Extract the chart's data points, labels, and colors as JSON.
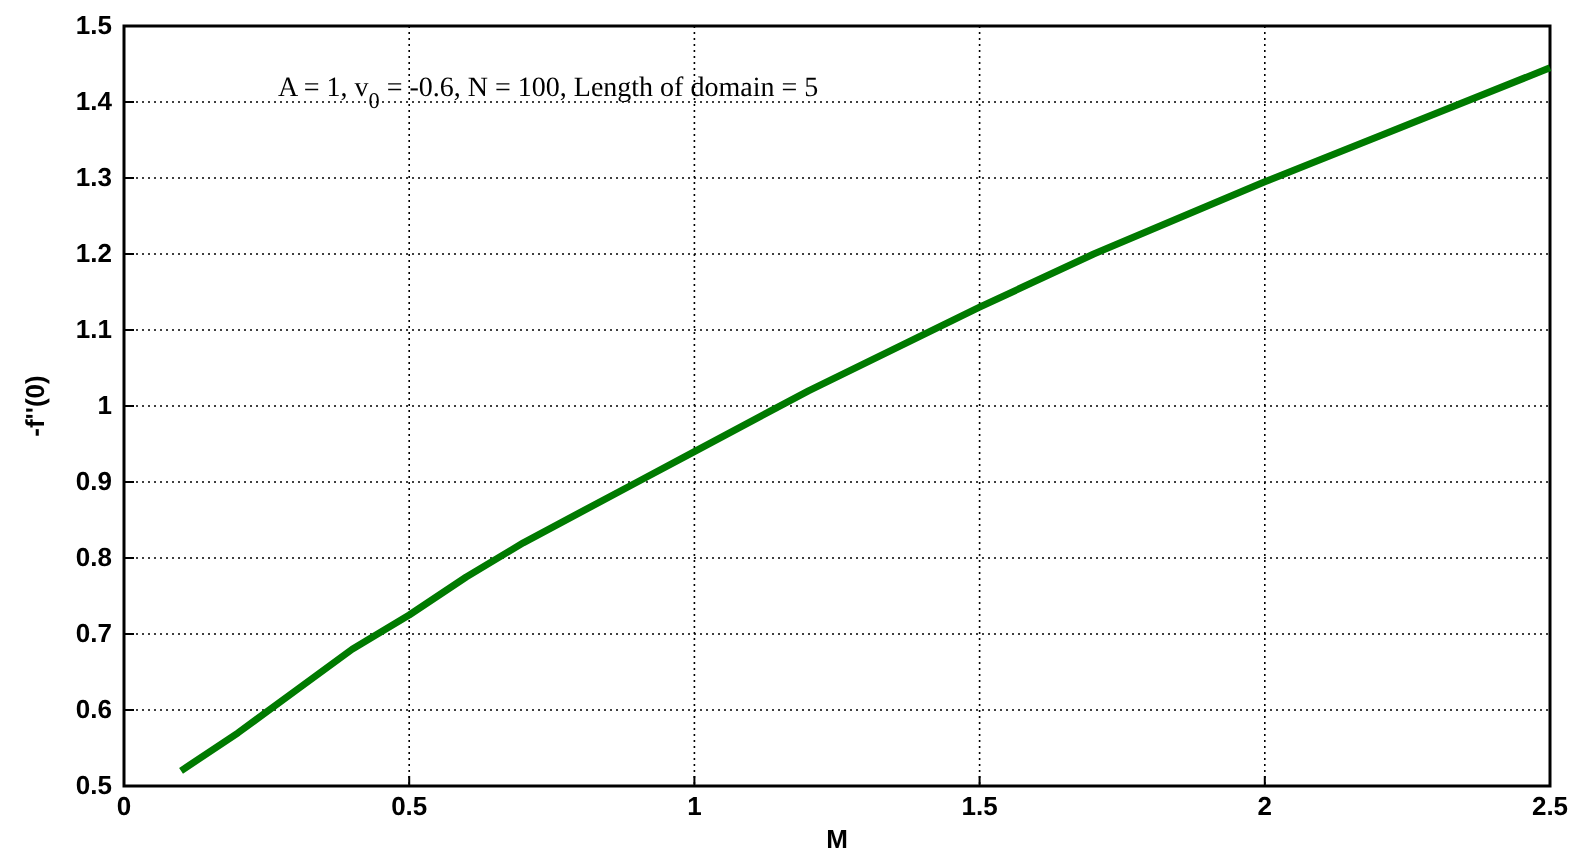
{
  "chart_data": {
    "type": "line",
    "xlabel": "M",
    "ylabel": "-f''(0)",
    "annotations": [
      "A = 1, v$_{0}$ = -0.6, N = 100, Length of domain = 5"
    ],
    "x": [
      0.1,
      0.2,
      0.3,
      0.4,
      0.5,
      0.6,
      0.7,
      0.8,
      0.9,
      1.0,
      1.2,
      1.5,
      1.7,
      2.0,
      2.2,
      2.5
    ],
    "series": [
      {
        "color": "#007a00",
        "values": [
          0.52,
          0.57,
          0.625,
          0.68,
          0.725,
          0.775,
          0.82,
          0.86,
          0.9,
          0.94,
          1.02,
          1.13,
          1.2,
          1.295,
          1.355,
          1.445
        ]
      }
    ],
    "xlim": [
      0,
      2.5
    ],
    "ylim": [
      0.5,
      1.5
    ],
    "xticks": [
      0,
      0.5,
      1,
      1.5,
      2,
      2.5
    ],
    "yticks": [
      0.5,
      0.6,
      0.7,
      0.8,
      0.9,
      1,
      1.1,
      1.2,
      1.3,
      1.4,
      1.5
    ],
    "grid": true,
    "line_style": "solid"
  }
}
